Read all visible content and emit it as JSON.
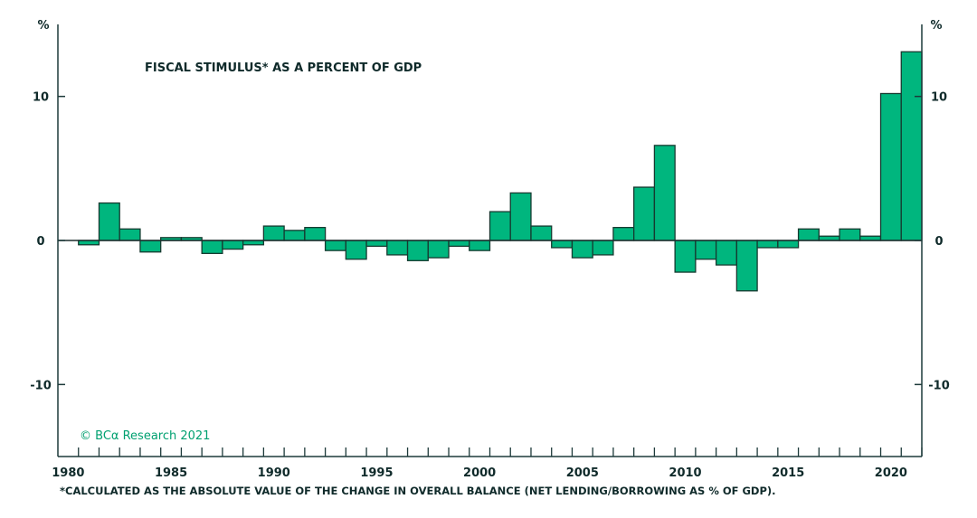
{
  "chart_data": {
    "type": "bar",
    "title": "FISCAL STIMULUS* AS A PERCENT OF GDP",
    "ylabel_left": "%",
    "ylabel_right": "%",
    "ylim": [
      -15,
      15
    ],
    "yticks": [
      -10,
      0,
      10
    ],
    "xlim": [
      1979.5,
      2021.5
    ],
    "xtick_labels": [
      "1980",
      "1985",
      "1990",
      "1995",
      "2000",
      "2005",
      "2010",
      "2015",
      "2020"
    ],
    "grid": false,
    "bar_color": "#00b67e",
    "x": [
      1981,
      1982,
      1983,
      1984,
      1985,
      1986,
      1987,
      1988,
      1989,
      1990,
      1991,
      1992,
      1993,
      1994,
      1995,
      1996,
      1997,
      1998,
      1999,
      2000,
      2001,
      2002,
      2003,
      2004,
      2005,
      2006,
      2007,
      2008,
      2009,
      2010,
      2011,
      2012,
      2013,
      2014,
      2015,
      2016,
      2017,
      2018,
      2019,
      2020,
      2021
    ],
    "values": [
      -0.3,
      2.6,
      0.8,
      -0.8,
      0.2,
      0.2,
      -0.9,
      -0.6,
      -0.3,
      1.0,
      0.7,
      0.9,
      -0.7,
      -1.3,
      -0.4,
      -1.0,
      -1.4,
      -1.2,
      -0.4,
      -0.7,
      2.0,
      3.3,
      1.0,
      -0.5,
      -1.2,
      -1.0,
      0.9,
      3.7,
      6.6,
      -2.2,
      -1.3,
      -1.7,
      -3.5,
      -0.5,
      -0.5,
      0.8,
      0.3,
      0.8,
      0.3,
      10.2,
      13.1
    ],
    "footnote": "*CALCULATED AS THE ABSOLUTE VALUE OF THE CHANGE IN OVERALL BALANCE (NET LENDING/BORROWING AS % OF GDP).",
    "source": "© BCα Research 2021"
  }
}
